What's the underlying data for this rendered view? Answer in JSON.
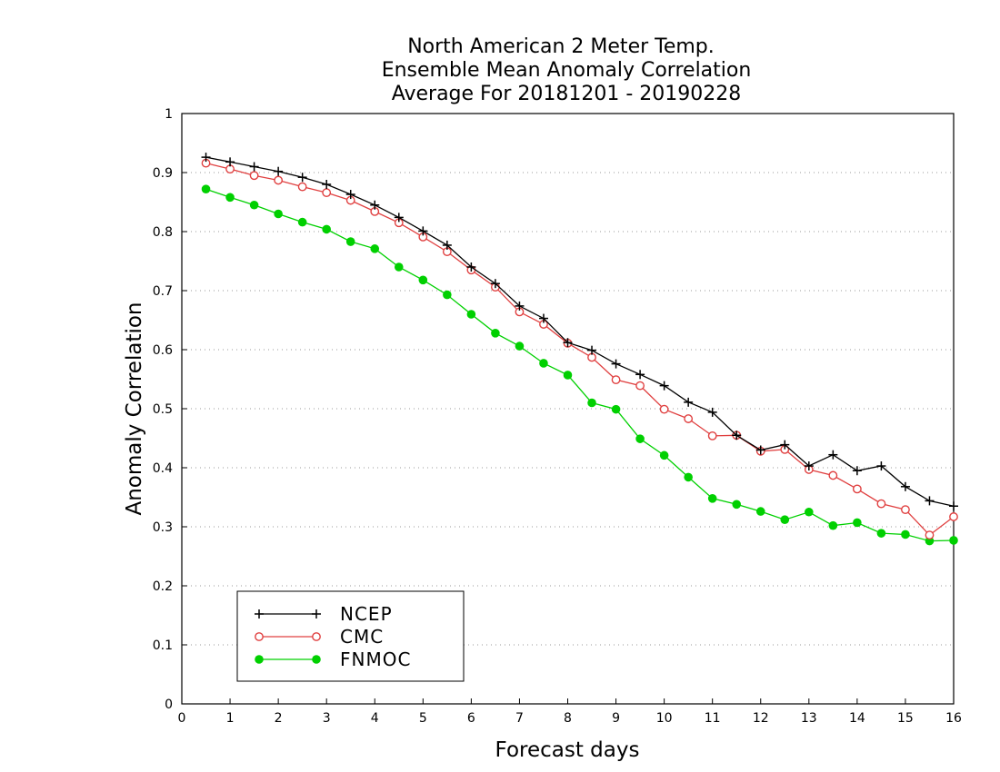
{
  "chart_data": {
    "type": "line",
    "title": [
      "North American 2 Meter Temp.",
      "Ensemble Mean Anomaly Correlation",
      "Average For 20181201 - 20190228"
    ],
    "xlabel": "Forecast days",
    "ylabel": "Anomaly Correlation",
    "xlim": [
      0,
      16
    ],
    "ylim": [
      0,
      1
    ],
    "xticks": [
      "0",
      "1",
      "2",
      "3",
      "4",
      "5",
      "6",
      "7",
      "8",
      "9",
      "10",
      "11",
      "12",
      "13",
      "14",
      "15",
      "16"
    ],
    "yticks": [
      "0",
      "0.1",
      "0.2",
      "0.3",
      "0.4",
      "0.5",
      "0.6",
      "0.7",
      "0.8",
      "0.9",
      "1"
    ],
    "grid": true,
    "legend_position": "bottom-left",
    "x": [
      0.5,
      1,
      1.5,
      2,
      2.5,
      3,
      3.5,
      4,
      4.5,
      5,
      5.5,
      6,
      6.5,
      7,
      7.5,
      8,
      8.5,
      9,
      9.5,
      10,
      10.5,
      11,
      11.5,
      12,
      12.5,
      13,
      13.5,
      14,
      14.5,
      15,
      15.5,
      16
    ],
    "series": [
      {
        "name": "NCEP",
        "color": "#000000",
        "marker": "plus",
        "values": [
          0.926,
          0.918,
          0.91,
          0.902,
          0.892,
          0.88,
          0.863,
          0.845,
          0.824,
          0.801,
          0.777,
          0.74,
          0.712,
          0.674,
          0.653,
          0.612,
          0.599,
          0.576,
          0.558,
          0.539,
          0.511,
          0.494,
          0.455,
          0.43,
          0.439,
          0.403,
          0.422,
          0.395,
          0.403,
          0.368,
          0.344,
          0.335
        ]
      },
      {
        "name": "CMC",
        "color": "#e04040",
        "marker": "open-circle",
        "values": [
          0.916,
          0.906,
          0.895,
          0.887,
          0.876,
          0.866,
          0.853,
          0.834,
          0.815,
          0.791,
          0.766,
          0.735,
          0.706,
          0.664,
          0.643,
          0.611,
          0.587,
          0.549,
          0.539,
          0.499,
          0.483,
          0.454,
          0.455,
          0.428,
          0.431,
          0.397,
          0.387,
          0.364,
          0.339,
          0.329,
          0.286,
          0.317
        ]
      },
      {
        "name": "FNMOC",
        "color": "#00d000",
        "marker": "filled-circle",
        "values": [
          0.872,
          0.858,
          0.845,
          0.83,
          0.816,
          0.804,
          0.783,
          0.771,
          0.74,
          0.718,
          0.693,
          0.66,
          0.628,
          0.606,
          0.577,
          0.557,
          0.51,
          0.499,
          0.449,
          0.421,
          0.384,
          0.348,
          0.338,
          0.326,
          0.312,
          0.325,
          0.302,
          0.307,
          0.289,
          0.287,
          0.276,
          0.277
        ]
      }
    ]
  }
}
